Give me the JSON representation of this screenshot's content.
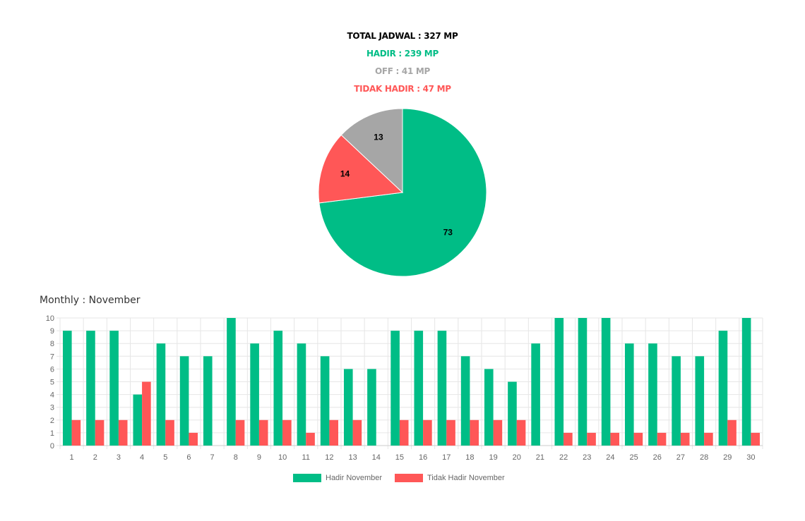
{
  "summary": {
    "total": "TOTAL JADWAL : 327 MP",
    "hadir": "HADIR : 239 MP",
    "off": "OFF : 41 MP",
    "tidak_hadir": "TIDAK HADIR : 47 MP"
  },
  "colors": {
    "total": "#000000",
    "hadir": "#00bd86",
    "off": "#a6a6a6",
    "tidak_hadir": "#ff5757",
    "grid": "#e6e6e6",
    "axis_text": "#666666"
  },
  "monthly_title": "Monthly : November",
  "chart_data": [
    {
      "type": "pie",
      "slices": [
        {
          "label": "73",
          "value": 73,
          "color": "#00bd86"
        },
        {
          "label": "14",
          "value": 14,
          "color": "#ff5757"
        },
        {
          "label": "13",
          "value": 13,
          "color": "#a6a6a6"
        }
      ]
    },
    {
      "type": "bar",
      "categories": [
        "1",
        "2",
        "3",
        "4",
        "5",
        "6",
        "7",
        "8",
        "9",
        "10",
        "11",
        "12",
        "13",
        "14",
        "15",
        "16",
        "17",
        "18",
        "19",
        "20",
        "21",
        "22",
        "23",
        "24",
        "25",
        "26",
        "27",
        "28",
        "29",
        "30"
      ],
      "series": [
        {
          "name": "Hadir November",
          "color": "#00bd86",
          "values": [
            9,
            9,
            9,
            4,
            8,
            7,
            7,
            10,
            8,
            9,
            8,
            7,
            6,
            6,
            9,
            9,
            9,
            7,
            6,
            5,
            8,
            10,
            10,
            10,
            8,
            8,
            7,
            7,
            9,
            10
          ]
        },
        {
          "name": "Tidak Hadir November",
          "color": "#ff5757",
          "values": [
            2,
            2,
            2,
            5,
            2,
            1,
            0,
            2,
            2,
            2,
            1,
            2,
            2,
            0,
            2,
            2,
            2,
            2,
            2,
            2,
            0,
            1,
            1,
            1,
            1,
            1,
            1,
            1,
            2,
            1
          ]
        }
      ],
      "ylim": [
        0,
        10
      ],
      "yticks": [
        "0",
        "1",
        "2",
        "3",
        "4",
        "5",
        "6",
        "7",
        "8",
        "9",
        "10"
      ],
      "grid": true,
      "legend": "bottom"
    }
  ]
}
